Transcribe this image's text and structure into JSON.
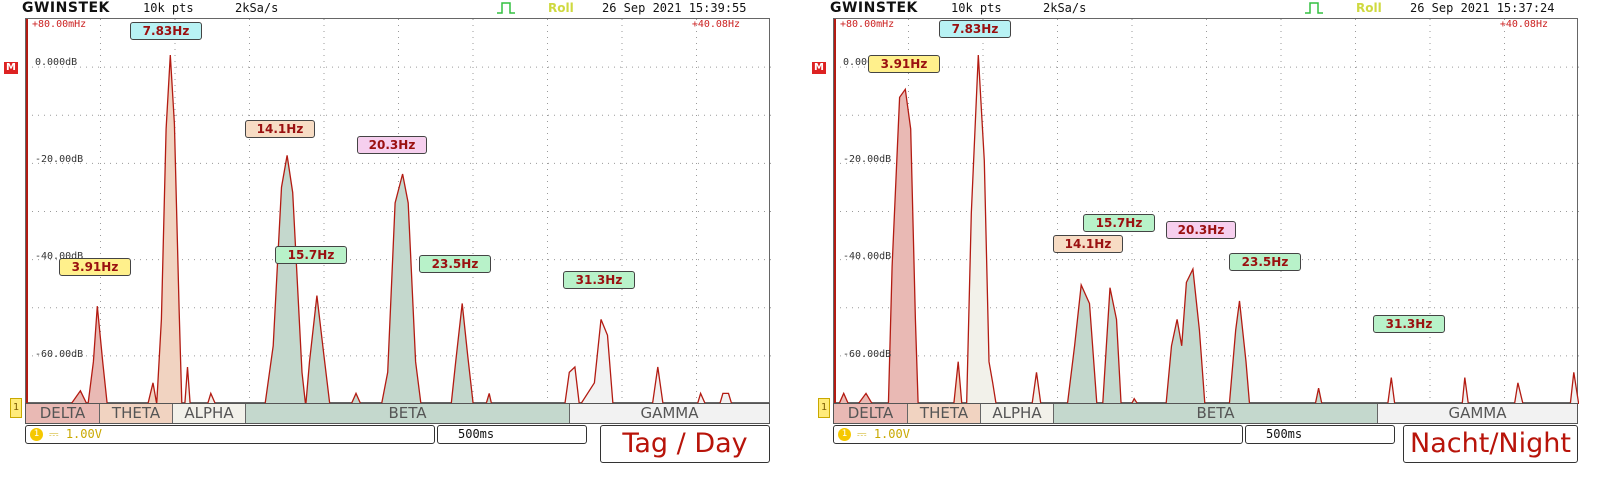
{
  "colors": {
    "trace": "#b31b12",
    "delta": "#e9b9b4",
    "theta": "#f1d3c1",
    "alpha": "#f2f1ea",
    "beta": "#c4d8cd",
    "gamma": "#f2f2f2",
    "grid": "#9a9a9a"
  },
  "panels": [
    {
      "header": {
        "brand": "GWINSTEK",
        "points": "10k pts",
        "rate": "2kSa/s",
        "mode": "Roll",
        "datetime": "26 Sep 2021 15:39:55"
      },
      "top_left": "+80.00mHz",
      "top_right": "+40.08Hz",
      "marker": "M",
      "y_labels": [
        "0.000dB",
        "-20.00dB",
        "-40.00dB",
        "-60.00dB"
      ],
      "bands": [
        "DELTA",
        "THETA",
        "ALPHA",
        "BETA",
        "GAMMA"
      ],
      "channel": {
        "icon": "1",
        "coupling": "⎓",
        "scale": "1.00V"
      },
      "timebase": "500ms",
      "label": "Tag / Day",
      "peaks": [
        {
          "label": "3.91Hz",
          "color": "#fff08c"
        },
        {
          "label": "7.83Hz",
          "color": "#b8f2f4"
        },
        {
          "label": "14.1Hz",
          "color": "#f7dcc4"
        },
        {
          "label": "15.7Hz",
          "color": "#b8f2c9"
        },
        {
          "label": "20.3Hz",
          "color": "#f6cfee"
        },
        {
          "label": "23.5Hz",
          "color": "#b8f2c9"
        },
        {
          "label": "31.3Hz",
          "color": "#b8f2c9"
        }
      ],
      "chart_data": {
        "type": "area",
        "x_range_hz": [
          0.08,
          40.08
        ],
        "ylim_db": [
          -66,
          6.8
        ],
        "spectrum": [
          [
            0.08,
            -70
          ],
          [
            1.5,
            -70
          ],
          [
            2.5,
            -66
          ],
          [
            3.0,
            -63.5
          ],
          [
            3.4,
            -70
          ],
          [
            3.7,
            -58
          ],
          [
            3.91,
            -47.5
          ],
          [
            4.2,
            -58
          ],
          [
            4.45,
            -70
          ],
          [
            5.5,
            -70
          ],
          [
            5.8,
            -67
          ],
          [
            6.05,
            -70
          ],
          [
            6.6,
            -70
          ],
          [
            6.9,
            -62
          ],
          [
            7.1,
            -66
          ],
          [
            7.35,
            -50
          ],
          [
            7.6,
            -14
          ],
          [
            7.83,
            0
          ],
          [
            8.05,
            -13
          ],
          [
            8.3,
            -48
          ],
          [
            8.45,
            -70
          ],
          [
            8.6,
            -70
          ],
          [
            8.75,
            -59
          ],
          [
            8.9,
            -70
          ],
          [
            9.8,
            -70
          ],
          [
            10.0,
            -64
          ],
          [
            10.3,
            -70
          ],
          [
            12.9,
            -70
          ],
          [
            13.35,
            -55
          ],
          [
            13.8,
            -25
          ],
          [
            14.1,
            -19
          ],
          [
            14.4,
            -26
          ],
          [
            14.9,
            -60
          ],
          [
            15.1,
            -70
          ],
          [
            15.3,
            -58
          ],
          [
            15.7,
            -45.5
          ],
          [
            16.05,
            -56
          ],
          [
            16.4,
            -70
          ],
          [
            17.5,
            -70
          ],
          [
            17.8,
            -64
          ],
          [
            18.1,
            -70
          ],
          [
            19.15,
            -70
          ],
          [
            19.5,
            -60
          ],
          [
            19.9,
            -28
          ],
          [
            20.3,
            -22.5
          ],
          [
            20.6,
            -28
          ],
          [
            21.0,
            -58
          ],
          [
            21.3,
            -70
          ],
          [
            21.9,
            -67
          ],
          [
            22.3,
            -70
          ],
          [
            22.9,
            -70
          ],
          [
            23.15,
            -58
          ],
          [
            23.5,
            -47
          ],
          [
            23.8,
            -57
          ],
          [
            24.1,
            -70
          ],
          [
            24.75,
            -70
          ],
          [
            24.95,
            -64
          ],
          [
            25.1,
            -70
          ],
          [
            27.0,
            -70
          ],
          [
            27.3,
            -68
          ],
          [
            27.6,
            -70
          ],
          [
            29.0,
            -70
          ],
          [
            29.25,
            -60
          ],
          [
            29.55,
            -59
          ],
          [
            29.8,
            -70
          ],
          [
            30.6,
            -62
          ],
          [
            30.95,
            -50
          ],
          [
            31.3,
            -53
          ],
          [
            31.6,
            -70
          ],
          [
            33.7,
            -70
          ],
          [
            34.0,
            -59
          ],
          [
            34.3,
            -70
          ],
          [
            36.1,
            -70
          ],
          [
            36.3,
            -64
          ],
          [
            36.6,
            -70
          ],
          [
            37.3,
            -70
          ],
          [
            37.5,
            -64
          ],
          [
            37.8,
            -64
          ],
          [
            38.0,
            -70
          ],
          [
            40.08,
            -70
          ]
        ]
      }
    },
    {
      "header": {
        "brand": "GWINSTEK",
        "points": "10k pts",
        "rate": "2kSa/s",
        "mode": "Roll",
        "datetime": "26 Sep 2021 15:37:24"
      },
      "top_left": "+80.00mHz",
      "top_right": "+40.08Hz",
      "marker": "M",
      "y_labels": [
        "0.000dB",
        "-20.00dB",
        "-40.00dB",
        "-60.00dB"
      ],
      "bands": [
        "DELTA",
        "THETA",
        "ALPHA",
        "BETA",
        "GAMMA"
      ],
      "channel": {
        "icon": "1",
        "coupling": "⎓",
        "scale": "1.00V"
      },
      "timebase": "500ms",
      "label": "Nacht/Night",
      "peaks": [
        {
          "label": "3.91Hz",
          "color": "#fff08c"
        },
        {
          "label": "7.83Hz",
          "color": "#b8f2f4"
        },
        {
          "label": "14.1Hz",
          "color": "#f7dcc4"
        },
        {
          "label": "15.7Hz",
          "color": "#b8f2c9"
        },
        {
          "label": "20.3Hz",
          "color": "#f6cfee"
        },
        {
          "label": "23.5Hz",
          "color": "#b8f2c9"
        },
        {
          "label": "31.3Hz",
          "color": "#b8f2c9"
        }
      ],
      "chart_data": {
        "type": "area",
        "x_range_hz": [
          0.08,
          40.08
        ],
        "ylim_db": [
          -66,
          6.8
        ],
        "spectrum": [
          [
            0.08,
            -70
          ],
          [
            0.3,
            -70
          ],
          [
            0.6,
            -64
          ],
          [
            0.9,
            -70
          ],
          [
            1.1,
            -66
          ],
          [
            1.3,
            -70
          ],
          [
            1.8,
            -64
          ],
          [
            2.2,
            -68
          ],
          [
            2.6,
            -70
          ],
          [
            3.0,
            -66
          ],
          [
            3.2,
            -40
          ],
          [
            3.6,
            -8
          ],
          [
            3.91,
            -6.5
          ],
          [
            4.2,
            -14
          ],
          [
            4.45,
            -50
          ],
          [
            4.6,
            -70
          ],
          [
            6.5,
            -70
          ],
          [
            6.75,
            -58
          ],
          [
            6.95,
            -70
          ],
          [
            7.2,
            -70
          ],
          [
            7.45,
            -30
          ],
          [
            7.83,
            0
          ],
          [
            8.15,
            -20
          ],
          [
            8.4,
            -58
          ],
          [
            8.6,
            -62
          ],
          [
            8.8,
            -70
          ],
          [
            10.7,
            -70
          ],
          [
            10.95,
            -60
          ],
          [
            11.2,
            -70
          ],
          [
            12.6,
            -70
          ],
          [
            13.0,
            -55
          ],
          [
            13.35,
            -43.5
          ],
          [
            13.8,
            -47
          ],
          [
            14.2,
            -70
          ],
          [
            14.5,
            -70
          ],
          [
            14.9,
            -44
          ],
          [
            15.25,
            -50
          ],
          [
            15.5,
            -70
          ],
          [
            16.0,
            -70
          ],
          [
            16.2,
            -65
          ],
          [
            16.45,
            -70
          ],
          [
            17.9,
            -70
          ],
          [
            18.2,
            -55
          ],
          [
            18.5,
            -50
          ],
          [
            18.75,
            -55
          ],
          [
            19.0,
            -43
          ],
          [
            19.35,
            -40.5
          ],
          [
            19.7,
            -52
          ],
          [
            20.0,
            -70
          ],
          [
            21.3,
            -70
          ],
          [
            21.65,
            -52
          ],
          [
            21.85,
            -46.5
          ],
          [
            22.2,
            -58
          ],
          [
            22.4,
            -70
          ],
          [
            24.4,
            -70
          ],
          [
            24.6,
            -67
          ],
          [
            24.8,
            -70
          ],
          [
            25.9,
            -70
          ],
          [
            26.1,
            -63
          ],
          [
            26.3,
            -70
          ],
          [
            29.8,
            -70
          ],
          [
            30.0,
            -61
          ],
          [
            30.2,
            -70
          ],
          [
            32.5,
            -70
          ],
          [
            32.7,
            -67
          ],
          [
            33.1,
            -67
          ],
          [
            33.3,
            -70
          ],
          [
            33.8,
            -69
          ],
          [
            33.95,
            -61
          ],
          [
            34.15,
            -70
          ],
          [
            34.8,
            -70
          ],
          [
            35.0,
            -68
          ],
          [
            35.3,
            -70
          ],
          [
            36.2,
            -70
          ],
          [
            36.45,
            -67
          ],
          [
            36.6,
            -68
          ],
          [
            36.8,
            -62
          ],
          [
            37.1,
            -68
          ],
          [
            37.4,
            -70
          ],
          [
            39.6,
            -70
          ],
          [
            39.8,
            -60
          ],
          [
            40.08,
            -70
          ]
        ]
      }
    }
  ]
}
